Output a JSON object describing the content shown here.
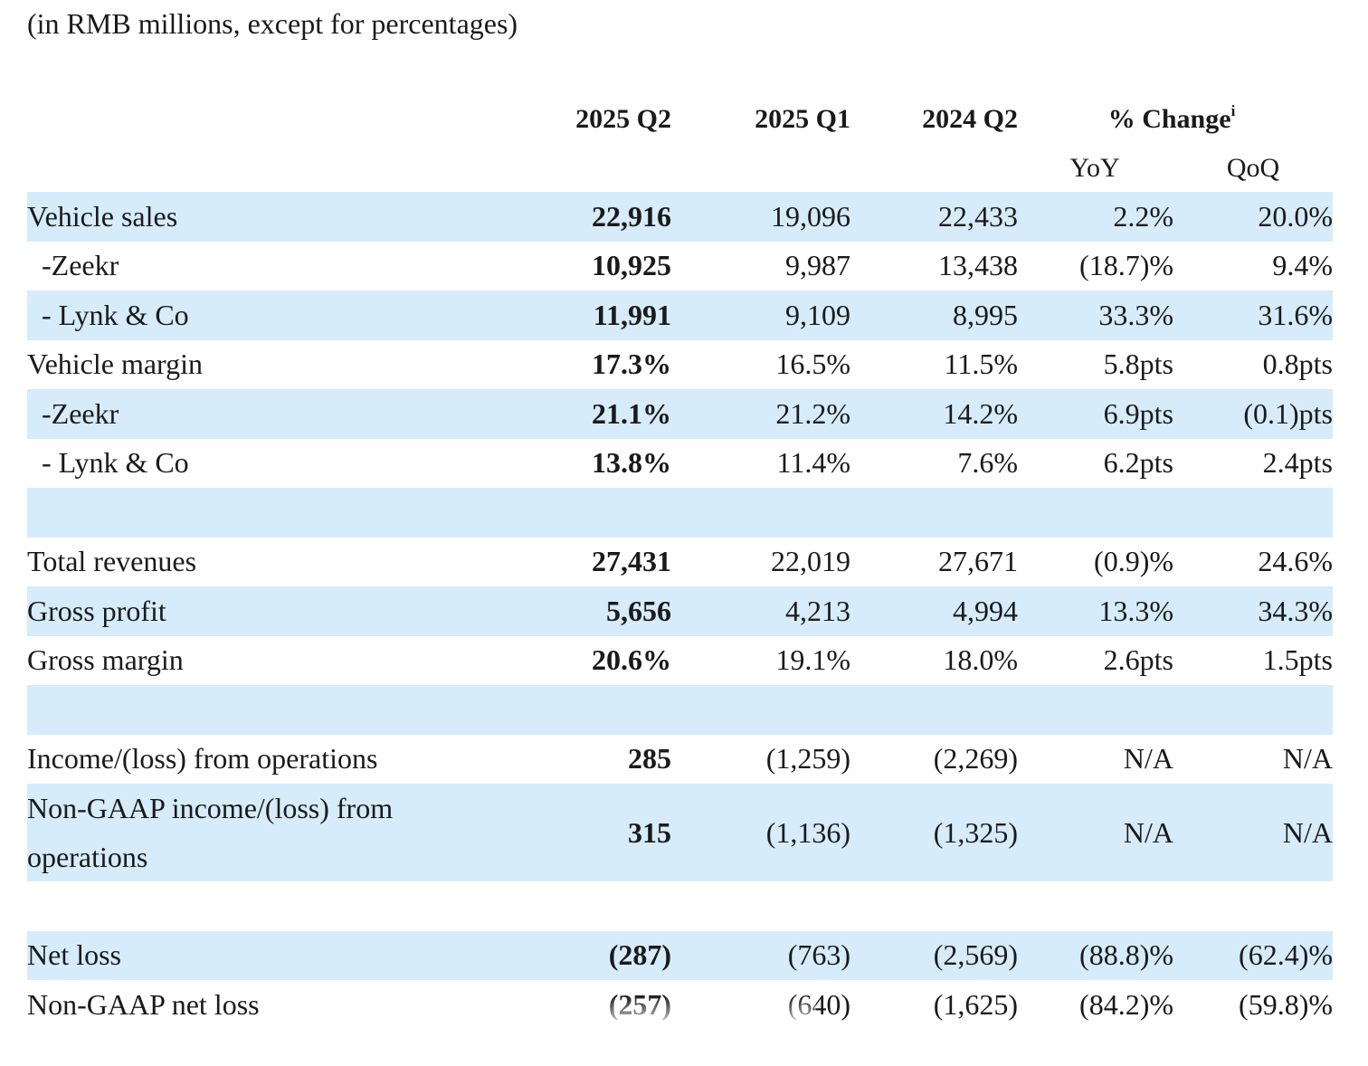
{
  "caption": "(in RMB millions, except for percentages)",
  "headers": {
    "col1": "2025 Q2",
    "col2": "2025 Q1",
    "col3": "2024 Q2",
    "change": "% Change",
    "change_note": "i",
    "yoy": "YoY",
    "qoq": "QoQ"
  },
  "rows": [
    {
      "label": "Vehicle sales",
      "indent": false,
      "shaded": true,
      "q2_2025": "22,916",
      "q1_2025": "19,096",
      "q2_2024": "22,433",
      "yoy": "2.2%",
      "qoq": "20.0%"
    },
    {
      "label": "-Zeekr",
      "indent": true,
      "shaded": false,
      "q2_2025": "10,925",
      "q1_2025": "9,987",
      "q2_2024": "13,438",
      "yoy": "(18.7)%",
      "qoq": "9.4%"
    },
    {
      "label": "- Lynk & Co",
      "indent": true,
      "shaded": true,
      "q2_2025": "11,991",
      "q1_2025": "9,109",
      "q2_2024": "8,995",
      "yoy": "33.3%",
      "qoq": "31.6%"
    },
    {
      "label": "Vehicle margin",
      "indent": false,
      "shaded": false,
      "q2_2025": "17.3%",
      "q1_2025": "16.5%",
      "q2_2024": "11.5%",
      "yoy": "5.8pts",
      "qoq": "0.8pts"
    },
    {
      "label": "-Zeekr",
      "indent": true,
      "shaded": true,
      "q2_2025": "21.1%",
      "q1_2025": "21.2%",
      "q2_2024": "14.2%",
      "yoy": "6.9pts",
      "qoq": "(0.1)pts"
    },
    {
      "label": "- Lynk & Co",
      "indent": true,
      "shaded": false,
      "q2_2025": "13.8%",
      "q1_2025": "11.4%",
      "q2_2024": "7.6%",
      "yoy": "6.2pts",
      "qoq": "2.4pts"
    },
    {
      "label": "",
      "indent": false,
      "shaded": true,
      "q2_2025": "",
      "q1_2025": "",
      "q2_2024": "",
      "yoy": "",
      "qoq": ""
    },
    {
      "label": "Total revenues",
      "indent": false,
      "shaded": false,
      "q2_2025": "27,431",
      "q1_2025": "22,019",
      "q2_2024": "27,671",
      "yoy": "(0.9)%",
      "qoq": "24.6%"
    },
    {
      "label": "Gross profit",
      "indent": false,
      "shaded": true,
      "q2_2025": "5,656",
      "q1_2025": "4,213",
      "q2_2024": "4,994",
      "yoy": "13.3%",
      "qoq": "34.3%"
    },
    {
      "label": "Gross margin",
      "indent": false,
      "shaded": false,
      "q2_2025": "20.6%",
      "q1_2025": "19.1%",
      "q2_2024": "18.0%",
      "yoy": "2.6pts",
      "qoq": "1.5pts"
    },
    {
      "label": "",
      "indent": false,
      "shaded": true,
      "q2_2025": "",
      "q1_2025": "",
      "q2_2024": "",
      "yoy": "",
      "qoq": ""
    },
    {
      "label": "Income/(loss) from operations",
      "indent": false,
      "shaded": false,
      "q2_2025": "285",
      "q1_2025": "(1,259)",
      "q2_2024": "(2,269)",
      "yoy": "N/A",
      "qoq": "N/A"
    },
    {
      "label": "Non-GAAP income/(loss) from operations",
      "indent": false,
      "shaded": true,
      "tall": true,
      "q2_2025": "315",
      "q1_2025": "(1,136)",
      "q2_2024": "(1,325)",
      "yoy": "N/A",
      "qoq": "N/A"
    },
    {
      "label": "",
      "indent": false,
      "shaded": false,
      "q2_2025": "",
      "q1_2025": "",
      "q2_2024": "",
      "yoy": "",
      "qoq": ""
    },
    {
      "label": "Net loss",
      "indent": false,
      "shaded": true,
      "q2_2025": "(287)",
      "q1_2025": "(763)",
      "q2_2024": "(2,569)",
      "yoy": "(88.8)%",
      "qoq": "(62.4)%"
    },
    {
      "label": "Non-GAAP net loss",
      "indent": false,
      "shaded": false,
      "q2_2025": "(257)",
      "q1_2025": "(640)",
      "q2_2024": "(1,625)",
      "yoy": "(84.2)%",
      "qoq": "(59.8)%"
    }
  ]
}
